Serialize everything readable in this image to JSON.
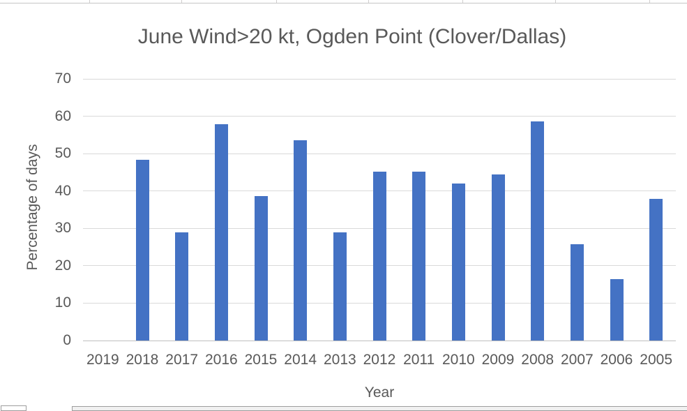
{
  "chart_data": {
    "type": "bar",
    "title": "June Wind>20 kt, Ogden Point (Clover/Dallas)",
    "xlabel": "Year",
    "ylabel": "Percentage of days",
    "categories": [
      "2019",
      "2018",
      "2017",
      "2016",
      "2015",
      "2014",
      "2013",
      "2012",
      "2011",
      "2010",
      "2009",
      "2008",
      "2007",
      "2006",
      "2005"
    ],
    "values": [
      0,
      48.4,
      29.0,
      57.9,
      38.7,
      53.6,
      29.0,
      45.2,
      45.2,
      42.0,
      44.5,
      58.7,
      25.7,
      16.5,
      37.9
    ],
    "ylim": [
      0,
      70
    ],
    "yticks": [
      0,
      10,
      20,
      30,
      40,
      50,
      60,
      70
    ],
    "grid": true,
    "legend": "none",
    "bar_color": "#4472C4",
    "text_color": "#595959",
    "gridline_color": "#D9D9D9",
    "axis_line_color": "#BFBFBF"
  }
}
